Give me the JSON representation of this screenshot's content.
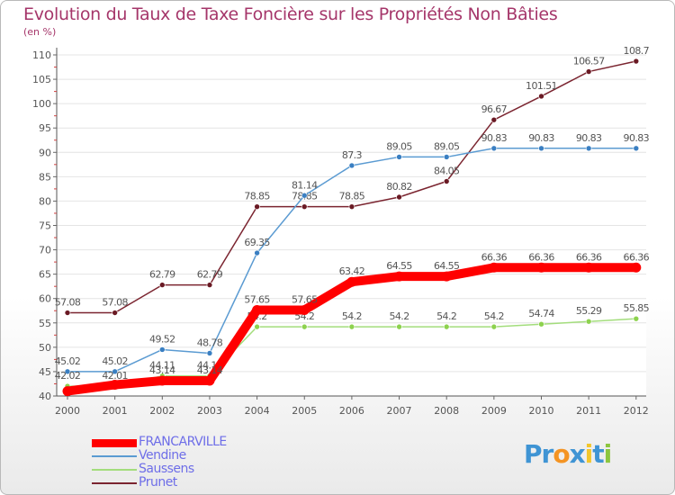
{
  "header": {
    "title": "Evolution du Taux de Taxe Foncière sur les Propriétés Non Bâties",
    "subtitle": "(en %)"
  },
  "logo": {
    "text": "Proxiti",
    "letters": [
      "P",
      "r",
      "o",
      "x",
      "i",
      "t",
      "i"
    ],
    "colors": [
      "#3f94d4",
      "#3f94d4",
      "#f49423",
      "#3f94d4",
      "#f2c62b",
      "#3f94d4",
      "#8cc63f"
    ]
  },
  "chart_data": {
    "type": "line",
    "x": [
      "2000",
      "2001",
      "2002",
      "2003",
      "2004",
      "2005",
      "2006",
      "2007",
      "2008",
      "2009",
      "2010",
      "2011",
      "2012"
    ],
    "ylim": [
      40,
      110
    ],
    "yticks": [
      "40",
      "45",
      "50",
      "55",
      "60",
      "65",
      "70",
      "75",
      "80",
      "85",
      "90",
      "95",
      "100",
      "105",
      "110"
    ],
    "grid": "horizontal",
    "legend_position": "bottom-left",
    "series": [
      {
        "name": "Prunet",
        "color": "#7b2530",
        "marker": "#6a1a24",
        "values": [
          57.08,
          57.08,
          62.79,
          62.79,
          78.85,
          78.85,
          78.85,
          80.82,
          84.05,
          96.67,
          101.51,
          106.57,
          108.7
        ],
        "labels": [
          "57.08",
          "57.08",
          "62.79",
          "62.79",
          "78.85",
          "78.85",
          "78.85",
          "80.82",
          "84.05",
          "96.67",
          "101.51",
          "106.57",
          "108.7"
        ]
      },
      {
        "name": "Vendine",
        "color": "#5b9bd2",
        "marker": "#3a7fc2",
        "values": [
          45.02,
          45.02,
          49.52,
          48.78,
          69.35,
          81.14,
          87.3,
          89.05,
          89.05,
          90.83,
          90.83,
          90.83,
          90.83
        ],
        "labels": [
          "45.02",
          "45.02",
          "49.52",
          "48.78",
          "69.35",
          "81.14",
          "87.3",
          "89.05",
          "89.05",
          "90.83",
          "90.83",
          "90.83",
          "90.83"
        ]
      },
      {
        "name": "Saussens",
        "color": "#a3dd7c",
        "marker": "#8dd24e",
        "values": [
          42.02,
          42.01,
          44.11,
          44.11,
          54.2,
          54.2,
          54.2,
          54.2,
          54.2,
          54.2,
          54.74,
          55.29,
          55.85
        ],
        "labels": [
          "42.02",
          "42.01",
          "44.11",
          "44.11",
          "54.2",
          "54.2",
          "54.2",
          "54.2",
          "54.2",
          "54.2",
          "54.74",
          "55.29",
          "55.85"
        ]
      },
      {
        "name": "FRANCARVILLE",
        "color": "#ff0000",
        "marker": "#ff0000",
        "values": [
          41.0,
          42.3,
          43.14,
          43.14,
          57.65,
          57.65,
          63.42,
          64.55,
          64.55,
          66.36,
          66.36,
          66.36,
          66.36
        ],
        "labels": [
          "",
          "",
          "43.14",
          "43.14",
          "57.65",
          "57.65",
          "63.42",
          "64.55",
          "64.55",
          "66.36",
          "66.36",
          "66.36",
          "66.36"
        ]
      }
    ],
    "legend": [
      {
        "name": "FRANCARVILLE",
        "color": "#ff0000"
      },
      {
        "name": "Vendine",
        "color": "#5b9bd2"
      },
      {
        "name": "Saussens",
        "color": "#a3dd7c"
      },
      {
        "name": "Prunet",
        "color": "#7b2530"
      }
    ]
  }
}
